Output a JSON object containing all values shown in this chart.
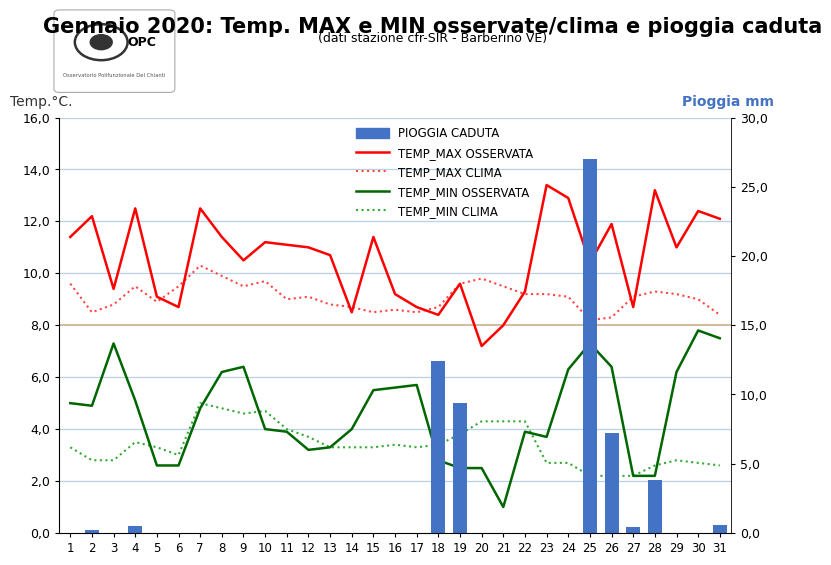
{
  "title": "Gennaio 2020: Temp. MAX e MIN osservate/clima e pioggia caduta",
  "subtitle": "(dati stazione cfr-SIR - Barberino VE)",
  "ylabel_left": "Temp.°C.",
  "ylabel_right": "Pioggia mm",
  "days": [
    1,
    2,
    3,
    4,
    5,
    6,
    7,
    8,
    9,
    10,
    11,
    12,
    13,
    14,
    15,
    16,
    17,
    18,
    19,
    20,
    21,
    22,
    23,
    24,
    25,
    26,
    27,
    28,
    29,
    30,
    31
  ],
  "temp_max_oss": [
    11.4,
    12.2,
    9.4,
    12.5,
    9.1,
    8.7,
    12.5,
    11.4,
    10.5,
    11.2,
    11.1,
    11.0,
    10.7,
    8.5,
    11.4,
    9.2,
    8.7,
    8.4,
    9.6,
    7.2,
    8.0,
    9.3,
    13.4,
    12.9,
    10.4,
    11.9,
    8.7,
    13.2,
    11.0,
    12.4,
    12.1
  ],
  "temp_max_clima": [
    9.6,
    8.5,
    8.8,
    9.5,
    8.9,
    9.5,
    10.3,
    9.9,
    9.5,
    9.7,
    9.0,
    9.1,
    8.8,
    8.7,
    8.5,
    8.6,
    8.5,
    8.7,
    9.6,
    9.8,
    9.5,
    9.2,
    9.2,
    9.1,
    8.2,
    8.3,
    9.1,
    9.3,
    9.2,
    9.0,
    8.4
  ],
  "temp_min_oss": [
    5.0,
    4.9,
    7.3,
    5.1,
    2.6,
    2.6,
    4.8,
    6.2,
    6.4,
    4.0,
    3.9,
    3.2,
    3.3,
    4.0,
    5.5,
    5.6,
    5.7,
    2.8,
    2.5,
    2.5,
    1.0,
    3.9,
    3.7,
    6.3,
    7.3,
    6.4,
    2.2,
    2.2,
    6.2,
    7.8,
    7.5
  ],
  "temp_min_clima": [
    3.3,
    2.8,
    2.8,
    3.5,
    3.3,
    3.0,
    5.0,
    4.8,
    4.6,
    4.7,
    4.0,
    3.7,
    3.3,
    3.3,
    3.3,
    3.4,
    3.3,
    3.4,
    3.8,
    4.3,
    4.3,
    4.3,
    2.7,
    2.7,
    2.2,
    2.2,
    2.2,
    2.6,
    2.8,
    2.7,
    2.6
  ],
  "pioggia": [
    0.0,
    0.2,
    0.0,
    0.5,
    0.0,
    0.0,
    0.0,
    0.0,
    0.0,
    0.0,
    0.0,
    0.0,
    0.0,
    0.0,
    0.0,
    0.0,
    0.0,
    12.4,
    9.4,
    0.0,
    0.0,
    0.0,
    0.0,
    0.0,
    27.0,
    7.2,
    0.4,
    3.8,
    0.0,
    0.0,
    0.6
  ],
  "ylim_left": [
    0.0,
    16.0
  ],
  "ylim_right": [
    0.0,
    30.0
  ],
  "yticks_left": [
    0.0,
    2.0,
    4.0,
    6.0,
    8.0,
    10.0,
    12.0,
    14.0,
    16.0
  ],
  "yticks_right": [
    0.0,
    5.0,
    10.0,
    15.0,
    20.0,
    25.0,
    30.0
  ],
  "color_bar": "#4472C4",
  "color_max_oss": "#FF0000",
  "color_max_clima": "#FF4444",
  "color_min_oss": "#006600",
  "color_min_clima": "#33AA33",
  "bg_color": "#FFFFFF",
  "plot_bg_color": "#FFFFFF",
  "title_fontsize": 15,
  "subtitle_fontsize": 9,
  "title_color": "#000000",
  "right_label_color": "#4472C4"
}
